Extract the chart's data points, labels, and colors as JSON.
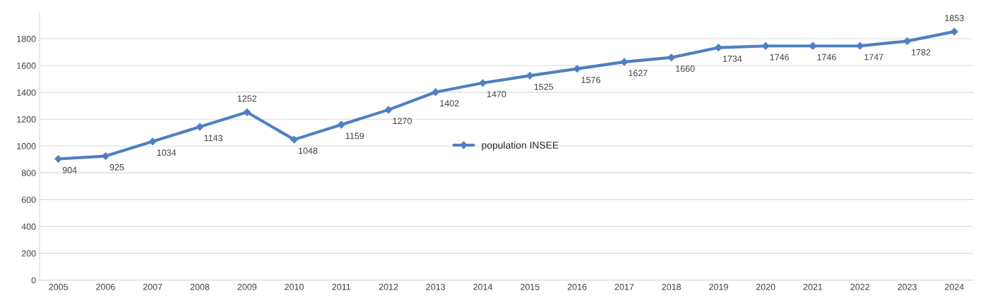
{
  "chart_data": {
    "type": "line",
    "categories": [
      "2005",
      "2006",
      "2007",
      "2008",
      "2009",
      "2010",
      "2011",
      "2012",
      "2013",
      "2014",
      "2015",
      "2016",
      "2017",
      "2018",
      "2019",
      "2020",
      "2021",
      "2022",
      "2023",
      "2024"
    ],
    "series": [
      {
        "name": "population INSEE",
        "color": "#4f7fc2",
        "values": [
          904,
          925,
          1034,
          1143,
          1252,
          1048,
          1159,
          1270,
          1402,
          1470,
          1525,
          1576,
          1627,
          1660,
          1734,
          1746,
          1746,
          1747,
          1782,
          1853
        ]
      }
    ],
    "ylim": [
      0,
      2000
    ],
    "yticks": [
      0,
      200,
      400,
      600,
      800,
      1000,
      1200,
      1400,
      1600,
      1800
    ],
    "grid": "y",
    "legend": "center",
    "marker": "diamond",
    "line_style": "solid",
    "data_labels": true
  }
}
